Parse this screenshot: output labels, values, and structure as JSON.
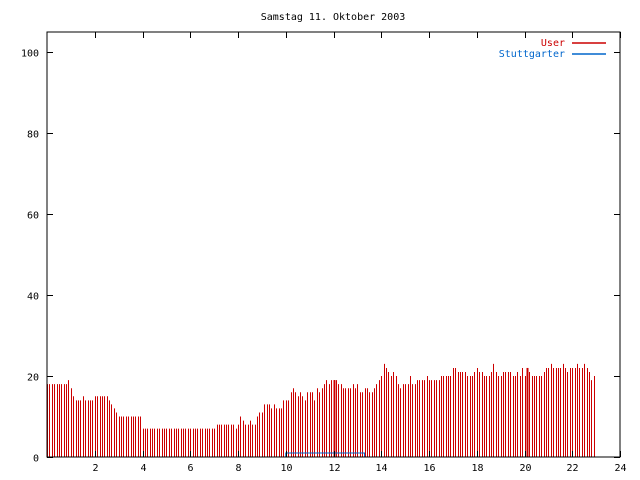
{
  "chart_data": {
    "type": "bar",
    "title": "Samstag 11. Oktober 2003",
    "xlabel": "",
    "ylabel": "",
    "xlim": [
      0,
      24
    ],
    "ylim": [
      0,
      105
    ],
    "xticks": [
      2,
      4,
      6,
      8,
      10,
      12,
      14,
      16,
      18,
      20,
      22,
      24
    ],
    "yticks": [
      0,
      20,
      40,
      60,
      80,
      100
    ],
    "grid": false,
    "legend_position": "top-right",
    "series": [
      {
        "name": "User",
        "color": "#cc0000",
        "interval_hours": 0.1,
        "values": [
          18,
          18,
          18,
          18,
          18,
          18,
          18,
          18,
          18,
          19,
          17,
          15,
          14,
          14,
          14,
          15,
          14,
          14,
          14,
          14,
          15,
          15,
          15,
          15,
          15,
          15,
          14,
          13,
          12,
          11,
          10,
          10,
          10,
          10,
          10,
          10,
          10,
          10,
          10,
          10,
          7,
          7,
          7,
          7,
          7,
          7,
          7,
          7,
          7,
          7,
          7,
          7,
          7,
          7,
          7,
          7,
          7,
          7,
          7,
          7,
          7,
          7,
          7,
          7,
          7,
          7,
          7,
          7,
          7,
          7,
          7,
          8,
          8,
          8,
          8,
          8,
          8,
          8,
          8,
          7,
          8,
          10,
          9,
          8,
          8,
          9,
          8,
          8,
          10,
          11,
          11,
          13,
          13,
          13,
          12,
          13,
          12,
          12,
          12,
          14,
          14,
          14,
          16,
          17,
          16,
          15,
          16,
          15,
          14,
          16,
          16,
          16,
          14,
          17,
          16,
          17,
          18,
          19,
          18,
          19,
          19,
          19,
          18,
          18,
          17,
          17,
          17,
          17,
          18,
          17,
          18,
          16,
          16,
          17,
          17,
          16,
          16,
          17,
          18,
          19,
          20,
          23,
          22,
          21,
          20,
          21,
          20,
          18,
          17,
          18,
          18,
          18,
          20,
          18,
          18,
          19,
          19,
          19,
          19,
          20,
          19,
          19,
          19,
          19,
          19,
          20,
          20,
          20,
          20,
          20,
          22,
          22,
          21,
          21,
          21,
          21,
          20,
          20,
          20,
          21,
          22,
          21,
          21,
          20,
          20,
          20,
          21,
          23,
          21,
          20,
          20,
          21,
          21,
          21,
          21,
          20,
          20,
          21,
          20,
          22,
          20,
          21,
          21,
          20,
          20,
          20,
          20,
          20,
          21,
          22,
          22,
          23,
          22,
          22,
          22,
          22,
          23,
          22,
          21,
          22,
          22,
          22,
          23,
          22,
          22,
          23,
          22,
          21,
          19,
          20
        ],
        "spikes": [
          {
            "x": 12.0,
            "value": 19
          },
          {
            "x": 20.1,
            "value": 22
          }
        ]
      },
      {
        "name": "Stuttgarter",
        "color": "#0066cc",
        "segments": [
          {
            "x_start": 10.0,
            "x_end": 13.3,
            "value": 1
          }
        ]
      }
    ]
  }
}
